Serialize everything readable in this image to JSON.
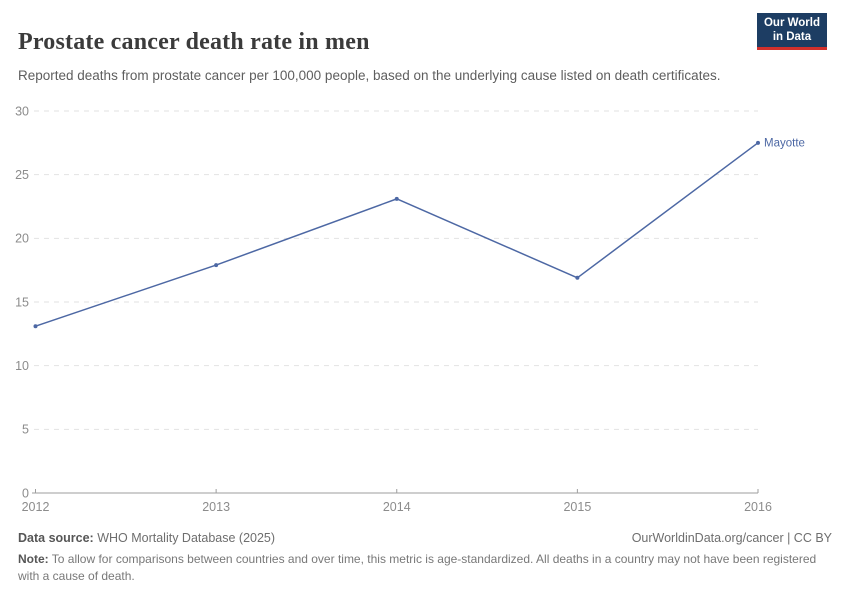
{
  "header": {
    "title": "Prostate cancer death rate in men",
    "subtitle": "Reported deaths from prostate cancer per 100,000 people, based on the underlying cause listed on death certificates."
  },
  "logo": {
    "line1": "Our World",
    "line2": "in Data"
  },
  "chart_data": {
    "type": "line",
    "title": "Prostate cancer death rate in men",
    "x": [
      2012,
      2013,
      2014,
      2015,
      2016
    ],
    "series": [
      {
        "name": "Mayotte",
        "values": [
          13.1,
          17.9,
          23.1,
          16.9,
          27.5
        ]
      }
    ],
    "xlabel": "",
    "ylabel": "",
    "ylim": [
      0,
      30
    ],
    "yticks": [
      0,
      5,
      10,
      15,
      20,
      25,
      30
    ],
    "xticks": [
      "2012",
      "2013",
      "2014",
      "2015",
      "2016"
    ],
    "grid": "dashed-horizontal",
    "legend": "end-of-line-label"
  },
  "footer": {
    "datasource_label": "Data source:",
    "datasource_value": " WHO Mortality Database (2025)",
    "license": "OurWorldinData.org/cancer | CC BY",
    "note_label": "Note:",
    "note_value": " To allow for comparisons between countries and over time, this metric is age-standardized. All deaths in a country may not have been registered with a cause of death."
  },
  "colors": {
    "line": "#4d68a4",
    "series_label": "#4d68a4",
    "grid": "#e2e2e2",
    "axis": "#9e9e9e",
    "tick_label": "#8c8c8c",
    "logo_bg": "#1d3d63",
    "logo_red": "#d2302c"
  }
}
